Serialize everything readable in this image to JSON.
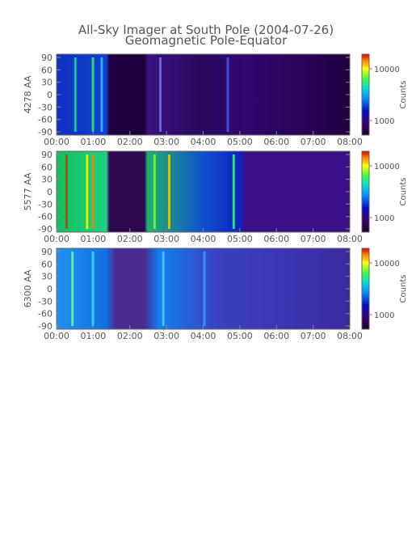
{
  "title": "All-Sky Imager at South Pole (2004-07-26)",
  "subtitle": "Geomagnetic Pole-Equator",
  "chart_data": [
    {
      "type": "heatmap",
      "ylabel": "4278 AA",
      "x_ticks": [
        "00:00",
        "01:00",
        "02:00",
        "03:00",
        "04:00",
        "05:00",
        "06:00",
        "07:00",
        "08:00"
      ],
      "y_ticks": [
        "90",
        "60",
        "30",
        "0",
        "-30",
        "-60",
        "-90"
      ],
      "ylim": [
        -90,
        90
      ],
      "colorbar_label": "Counts",
      "colorbar_ticks": [
        "10000",
        "1000"
      ]
    },
    {
      "type": "heatmap",
      "ylabel": "5577 AA",
      "x_ticks": [
        "00:00",
        "01:00",
        "02:00",
        "03:00",
        "04:00",
        "05:00",
        "06:00",
        "07:00",
        "08:00"
      ],
      "y_ticks": [
        "90",
        "60",
        "30",
        "0",
        "-30",
        "-60",
        "-90"
      ],
      "ylim": [
        -90,
        90
      ],
      "colorbar_label": "Counts",
      "colorbar_ticks": [
        "10000",
        "1000"
      ]
    },
    {
      "type": "heatmap",
      "ylabel": "6300 AA",
      "x_ticks": [
        "00:00",
        "01:00",
        "02:00",
        "03:00",
        "04:00",
        "05:00",
        "06:00",
        "07:00",
        "08:00"
      ],
      "y_ticks": [
        "90",
        "60",
        "30",
        "0",
        "-30",
        "-60",
        "-90"
      ],
      "ylim": [
        -90,
        90
      ],
      "colorbar_label": "Counts",
      "colorbar_ticks": [
        "10000",
        "1000"
      ]
    }
  ]
}
